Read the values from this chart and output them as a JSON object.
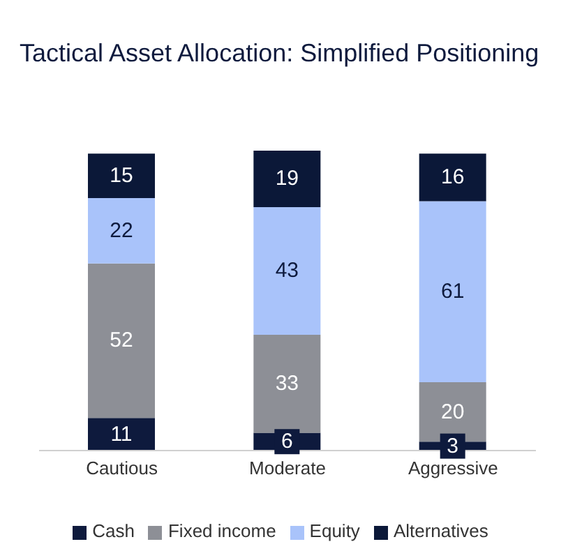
{
  "chart_data": {
    "type": "bar",
    "title": "Tactical Asset Allocation: Simplified Positioning",
    "categories": [
      "Cautious",
      "Moderate",
      "Aggressive"
    ],
    "stacked": true,
    "data_labels": true,
    "legend": "bottom",
    "grid": false,
    "series": [
      {
        "name": "Cash",
        "color": "#0e1a3d",
        "values": [
          11,
          6,
          3
        ]
      },
      {
        "name": "Fixed income",
        "color": "#8d8f96",
        "values": [
          52,
          33,
          20
        ]
      },
      {
        "name": "Equity",
        "color": "#a9c3fa",
        "values": [
          22,
          43,
          61
        ]
      },
      {
        "name": "Alternatives",
        "color": "#0b1838",
        "values": [
          15,
          19,
          16
        ]
      }
    ]
  }
}
